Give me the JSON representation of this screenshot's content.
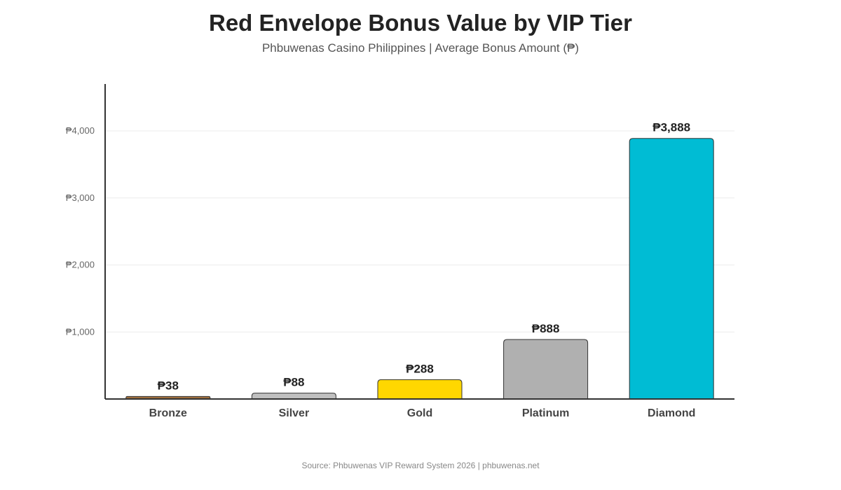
{
  "chart_data": {
    "type": "bar",
    "title": "Red Envelope Bonus Value by VIP Tier",
    "subtitle": "Phbuwenas Casino Philippines | Average Bonus Amount (₱)",
    "xlabel": "",
    "ylabel": "",
    "categories": [
      "Bronze",
      "Silver",
      "Gold",
      "Platinum",
      "Diamond"
    ],
    "values": [
      38,
      88,
      288,
      888,
      3888
    ],
    "value_labels": [
      "₱38",
      "₱88",
      "₱288",
      "₱888",
      "₱3,888"
    ],
    "bar_colors": [
      "#A0703E",
      "#C0C0C0",
      "#FFD700",
      "#B0B0B0",
      "#00BCD4"
    ],
    "ylim": [
      0,
      4000
    ],
    "yticks": [
      1000,
      2000,
      3000,
      4000
    ],
    "ytick_labels": [
      "₱1,000",
      "₱2,000",
      "₱3,000",
      "₱4,000"
    ],
    "grid": true,
    "legend": "none"
  },
  "footer": {
    "source": "Source: Phbuwenas VIP Reward System 2026 | phbuwenas.net"
  }
}
